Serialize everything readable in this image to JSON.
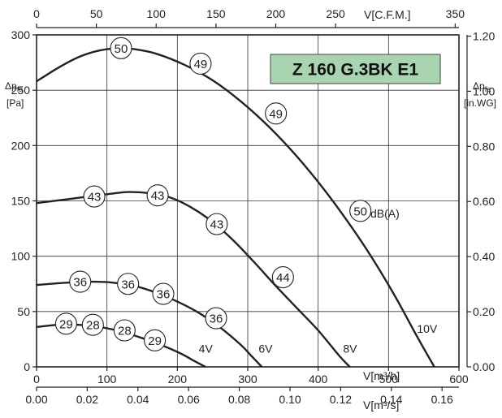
{
  "chart_data": {
    "type": "line",
    "title": "Z 160 G.3BK E1",
    "xlabel": "V[m³/h]",
    "x_ticks": [
      "0",
      "100",
      "200",
      "300",
      "400",
      "500",
      "600"
    ],
    "xlim": [
      0,
      600
    ],
    "ylabel": "Δpfa [Pa]",
    "ylabel_main": "Δp",
    "ylabel_sub": "fa",
    "ylabel_unit": "[Pa]",
    "y_ticks": [
      "0",
      "50",
      "100",
      "150",
      "200",
      "250",
      "300"
    ],
    "ylim": [
      0,
      300
    ],
    "top_axis": {
      "label": "V[C.F.M.]",
      "ticks": [
        "0",
        "50",
        "100",
        "150",
        "200",
        "250",
        "350"
      ],
      "tick_values": [
        0,
        50,
        100,
        150,
        200,
        250,
        350
      ],
      "max": 353.16
    },
    "bottom_axis2": {
      "label": "V[m³/s]",
      "ticks": [
        "0.00",
        "0.02",
        "0.04",
        "0.06",
        "0.08",
        "0.10",
        "0.12",
        "0.14",
        "0.16"
      ],
      "tick_values": [
        0,
        0.02,
        0.04,
        0.06,
        0.08,
        0.1,
        0.12,
        0.14,
        0.16
      ],
      "max": 0.16667
    },
    "right_axis": {
      "label_main": "Δp",
      "label_sub": "fa",
      "label_unit": "[in.WG]",
      "ticks": [
        "0.00",
        "0.20",
        "0.40",
        "0.60",
        "0.80",
        "1.00",
        "1.20"
      ],
      "tick_values": [
        0,
        0.2,
        0.4,
        0.6,
        0.8,
        1.0,
        1.2
      ],
      "max": 1.2044
    },
    "grid": true,
    "series": [
      {
        "name": "10V",
        "x": [
          0,
          30,
          60,
          90,
          120,
          140,
          170,
          210,
          250,
          290,
          330,
          370,
          410,
          450,
          480,
          510,
          540,
          565
        ],
        "y": [
          258,
          270,
          280,
          286,
          288,
          287,
          283,
          273,
          259,
          240,
          217,
          190,
          159,
          124,
          95,
          63,
          28,
          0
        ]
      },
      {
        "name": "8V",
        "x": [
          0,
          50,
          100,
          130,
          160,
          190,
          220,
          250,
          280,
          310,
          340,
          370,
          400,
          430,
          445
        ],
        "y": [
          148,
          152,
          156,
          158,
          157,
          153,
          144,
          131,
          114,
          94,
          73,
          53,
          33,
          10,
          0
        ]
      },
      {
        "name": "6V",
        "x": [
          0,
          40,
          80,
          110,
          140,
          170,
          200,
          230,
          260,
          290,
          305,
          320
        ],
        "y": [
          74,
          76,
          77,
          76,
          73,
          67,
          59,
          49,
          36,
          20,
          10,
          0
        ]
      },
      {
        "name": "4V",
        "x": [
          0,
          30,
          60,
          90,
          120,
          150,
          180,
          205,
          225,
          240
        ],
        "y": [
          36,
          38,
          38,
          36,
          32,
          26,
          19,
          12,
          5,
          0
        ]
      }
    ],
    "sound_labels": [
      {
        "value": "50",
        "x": 120,
        "y": 288
      },
      {
        "value": "49",
        "x": 233,
        "y": 274
      },
      {
        "value": "49",
        "x": 340,
        "y": 229
      },
      {
        "value": "50",
        "x": 460,
        "y": 141
      },
      {
        "value": "43",
        "x": 82,
        "y": 154
      },
      {
        "value": "43",
        "x": 172,
        "y": 155
      },
      {
        "value": "43",
        "x": 256,
        "y": 129
      },
      {
        "value": "44",
        "x": 350,
        "y": 81
      },
      {
        "value": "36",
        "x": 62,
        "y": 77
      },
      {
        "value": "36",
        "x": 130,
        "y": 75
      },
      {
        "value": "36",
        "x": 180,
        "y": 66
      },
      {
        "value": "36",
        "x": 255,
        "y": 44
      },
      {
        "value": "29",
        "x": 42,
        "y": 39
      },
      {
        "value": "28",
        "x": 80,
        "y": 38
      },
      {
        "value": "28",
        "x": 125,
        "y": 33
      },
      {
        "value": "29",
        "x": 168,
        "y": 24
      }
    ],
    "sound_unit": "dB(A)",
    "voltage_labels": [
      {
        "text": "10V",
        "x": 545,
        "y": 28
      },
      {
        "text": "8V",
        "x": 440,
        "y": 10
      },
      {
        "text": "6V",
        "x": 320,
        "y": 10
      },
      {
        "text": "4V",
        "x": 235,
        "y": 10
      }
    ]
  }
}
